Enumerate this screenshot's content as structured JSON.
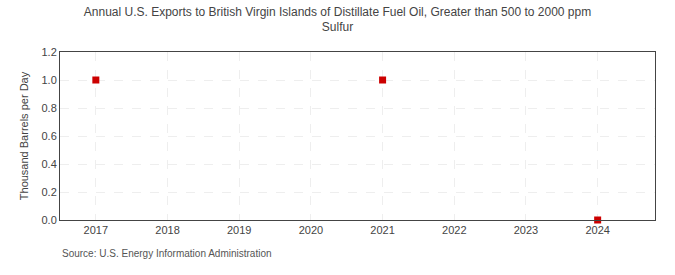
{
  "chart_data": {
    "type": "scatter",
    "title": "Annual U.S. Exports to British Virgin Islands of Distillate Fuel Oil, Greater than 500 to 2000 ppm\nSulfur",
    "ylabel": "Thousand Barrels per Day",
    "annotations": [
      "Source: U.S. Energy Information Administration"
    ],
    "x": [
      2017,
      2021,
      2024
    ],
    "values": [
      1.0,
      1.0,
      0.0
    ],
    "color": "#cc0000",
    "marker": "square",
    "xlim": [
      2016.5,
      2024.8
    ],
    "ylim": [
      0.0,
      1.2
    ],
    "xticks": [
      2017,
      2018,
      2019,
      2020,
      2021,
      2022,
      2023,
      2024
    ],
    "yticks": [
      {
        "value": 0.0,
        "label": "0.0"
      },
      0.2,
      0.4,
      0.6,
      0.8,
      {
        "value": 1.0,
        "label": "1.0"
      },
      1.2
    ],
    "grid": true
  }
}
